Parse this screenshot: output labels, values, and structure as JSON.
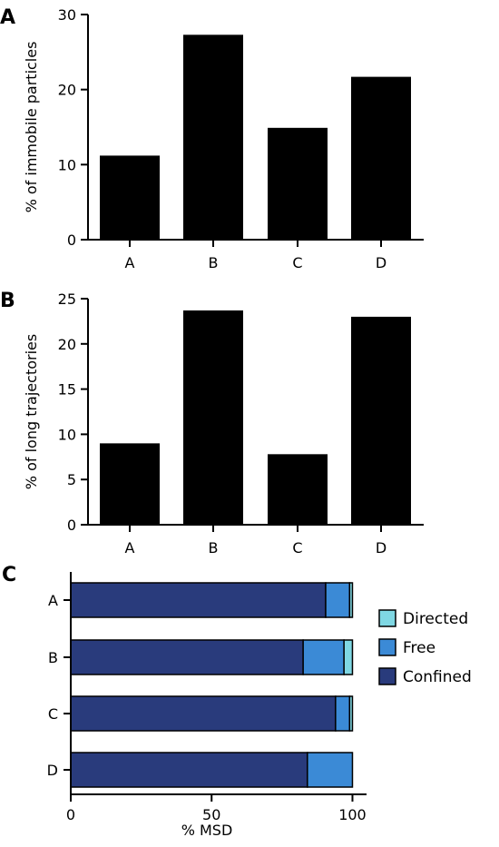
{
  "chart_data": [
    {
      "panel": "A",
      "type": "bar",
      "categories": [
        "A",
        "B",
        "C",
        "D"
      ],
      "values": [
        11.2,
        27.3,
        14.9,
        21.7
      ],
      "ylabel": "% of immobile particles",
      "xlabel": "",
      "ylim": [
        0,
        30
      ],
      "yticks": [
        0,
        10,
        20,
        30
      ],
      "bar_color": "#000000",
      "grid": false
    },
    {
      "panel": "B",
      "type": "bar",
      "categories": [
        "A",
        "B",
        "C",
        "D"
      ],
      "values": [
        9.0,
        23.7,
        7.8,
        23.0
      ],
      "ylabel": "% of long trajectories",
      "xlabel": "",
      "ylim": [
        0,
        25
      ],
      "yticks": [
        0,
        5,
        10,
        15,
        20,
        25
      ],
      "bar_color": "#000000",
      "grid": false
    },
    {
      "panel": "C",
      "type": "bar",
      "orientation": "horizontal",
      "stacked": true,
      "categories": [
        "A",
        "B",
        "C",
        "D"
      ],
      "series": [
        {
          "name": "Confined",
          "values": [
            90.5,
            82.5,
            94.0,
            84.0
          ],
          "color": "#293b7c"
        },
        {
          "name": "Free",
          "values": [
            8.5,
            14.5,
            5.0,
            16.0
          ],
          "color": "#3b8ad6"
        },
        {
          "name": "Directed",
          "values": [
            1.0,
            3.0,
            1.0,
            0.0
          ],
          "color": "#7fd7e3"
        }
      ],
      "xlabel": "% MSD",
      "xlim": [
        0,
        105
      ],
      "xticks": [
        0,
        50,
        100
      ],
      "legend_position": "right",
      "legend_order": [
        "Directed",
        "Free",
        "Confined"
      ],
      "grid": false
    }
  ]
}
